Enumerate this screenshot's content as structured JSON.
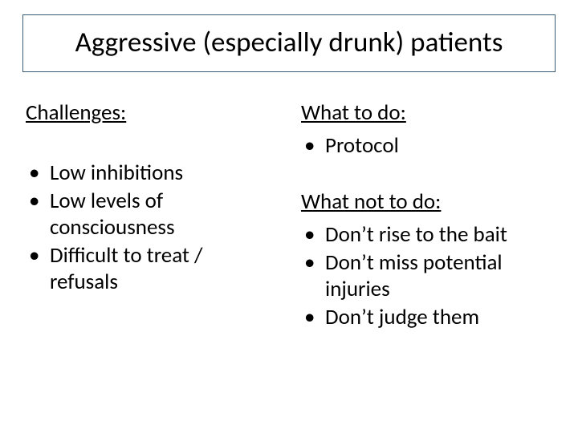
{
  "title": "Aggressive (especially drunk) patients",
  "left": {
    "heading": "Challenges:",
    "items": [
      "Low inhibitions",
      "Low levels of consciousness",
      "Difficult to treat / refusals"
    ]
  },
  "right_top": {
    "heading": "What to do:",
    "items": [
      "Protocol"
    ]
  },
  "right_bottom": {
    "heading": "What not to do:",
    "items": [
      "Don’t rise to the bait",
      "Don’t miss potential injuries",
      "Don’t judge them"
    ]
  },
  "style": {
    "title_border_color": "#3b5a73",
    "background_color": "#ffffff",
    "text_color": "#000000",
    "title_fontsize": 35,
    "body_fontsize": 27
  }
}
